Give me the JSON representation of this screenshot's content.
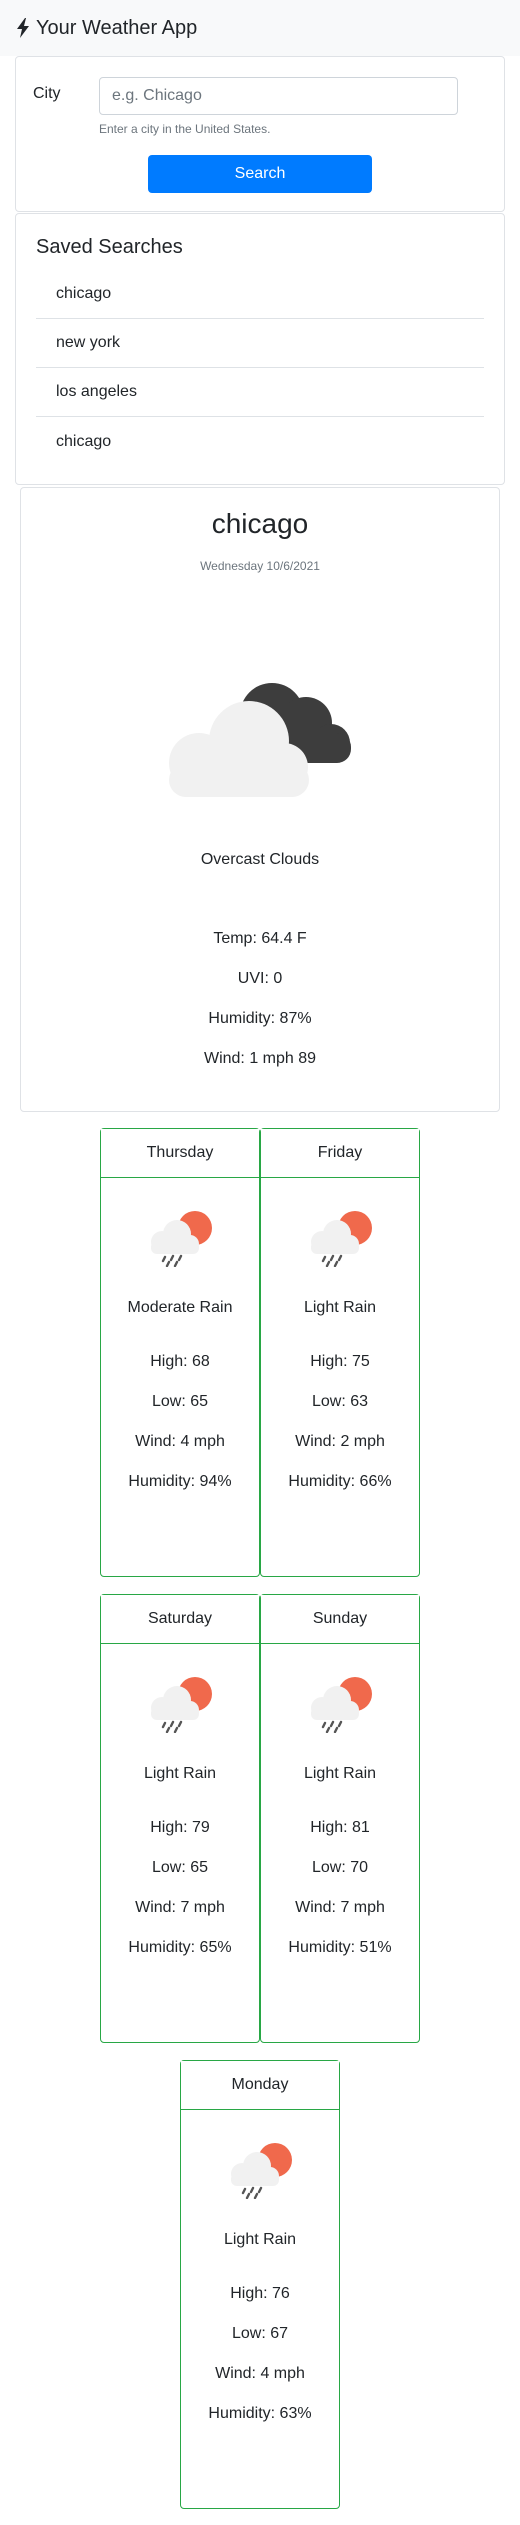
{
  "app": {
    "title": "Your Weather App"
  },
  "search": {
    "label": "City",
    "placeholder": "e.g. Chicago",
    "value": "",
    "help": "Enter a city in the United States.",
    "button": "Search"
  },
  "saved": {
    "title": "Saved Searches",
    "items": [
      "chicago",
      "new york",
      "los angeles",
      "chicago"
    ]
  },
  "current": {
    "city": "chicago",
    "date": "Wednesday 10/6/2021",
    "description": "Overcast Clouds",
    "icon": "overcast-clouds-icon",
    "temp": "Temp: 64.4 F",
    "uvi": "UVI: 0",
    "humidity": "Humidity: 87%",
    "wind": "Wind: 1 mph 89"
  },
  "forecast": [
    {
      "day": "Thursday",
      "icon": "rain-icon",
      "description": "Moderate Rain",
      "high": "High: 68",
      "low": "Low: 65",
      "wind": "Wind: 4 mph",
      "humidity": "Humidity: 94%"
    },
    {
      "day": "Friday",
      "icon": "rain-icon",
      "description": "Light Rain",
      "high": "High: 75",
      "low": "Low: 63",
      "wind": "Wind: 2 mph",
      "humidity": "Humidity: 66%"
    },
    {
      "day": "Saturday",
      "icon": "rain-icon",
      "description": "Light Rain",
      "high": "High: 79",
      "low": "Low: 65",
      "wind": "Wind: 7 mph",
      "humidity": "Humidity: 65%"
    },
    {
      "day": "Sunday",
      "icon": "rain-icon",
      "description": "Light Rain",
      "high": "High: 81",
      "low": "Low: 70",
      "wind": "Wind: 7 mph",
      "humidity": "Humidity: 51%"
    },
    {
      "day": "Monday",
      "icon": "rain-icon",
      "description": "Light Rain",
      "high": "High: 76",
      "low": "Low: 67",
      "wind": "Wind: 4 mph",
      "humidity": "Humidity: 63%"
    }
  ],
  "colors": {
    "primary": "#007bff",
    "forecast_border": "#28a745",
    "sun": "#f0694c",
    "dark_cloud": "#3d3d3d",
    "light_cloud": "#f1f1f1"
  }
}
